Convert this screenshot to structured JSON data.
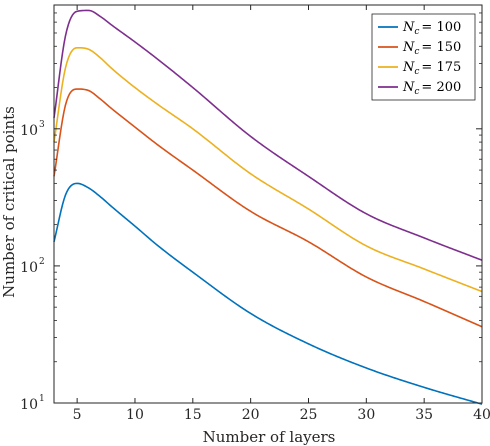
{
  "chart_data": {
    "type": "line",
    "title": "",
    "xlabel": "Number of layers",
    "ylabel": "Number of critical points",
    "xlim": [
      3,
      40
    ],
    "ylim": [
      10,
      8000
    ],
    "yscale": "log",
    "grid": false,
    "legend_position": "top-right",
    "x_ticks": [
      5,
      10,
      15,
      20,
      25,
      30,
      35,
      40
    ],
    "y_ticks": [
      {
        "value": 10,
        "base": "10",
        "exp": "1"
      },
      {
        "value": 100,
        "base": "10",
        "exp": "2"
      },
      {
        "value": 1000,
        "base": "10",
        "exp": "3"
      }
    ],
    "x": [
      3,
      4,
      5,
      6,
      7,
      8,
      10,
      12,
      15,
      20,
      25,
      30,
      35,
      40
    ],
    "series": [
      {
        "name": "N_c = 100",
        "legend_var": "N",
        "legend_sub": "c",
        "legend_value": "= 100",
        "color": "#0072BD",
        "values": [
          150,
          330,
          400,
          370,
          320,
          270,
          195,
          140,
          90,
          45,
          27,
          18,
          13,
          9.8
        ]
      },
      {
        "name": "N_c = 150",
        "legend_var": "N",
        "legend_sub": "c",
        "legend_value": "= 150",
        "color": "#D95319",
        "values": [
          450,
          1500,
          1950,
          1900,
          1650,
          1400,
          1030,
          760,
          500,
          250,
          150,
          83,
          55,
          36
        ]
      },
      {
        "name": "N_c = 175",
        "legend_var": "N",
        "legend_sub": "c",
        "legend_value": "= 175",
        "color": "#EDB120",
        "values": [
          800,
          2800,
          3900,
          3800,
          3300,
          2750,
          2000,
          1500,
          1000,
          470,
          260,
          140,
          95,
          65
        ]
      },
      {
        "name": "N_c = 200",
        "legend_var": "N",
        "legend_sub": "c",
        "legend_value": "= 200",
        "color": "#7E2F8E",
        "values": [
          1200,
          4800,
          7200,
          7300,
          6600,
          5700,
          4300,
          3200,
          2000,
          880,
          450,
          240,
          160,
          110
        ]
      }
    ]
  }
}
